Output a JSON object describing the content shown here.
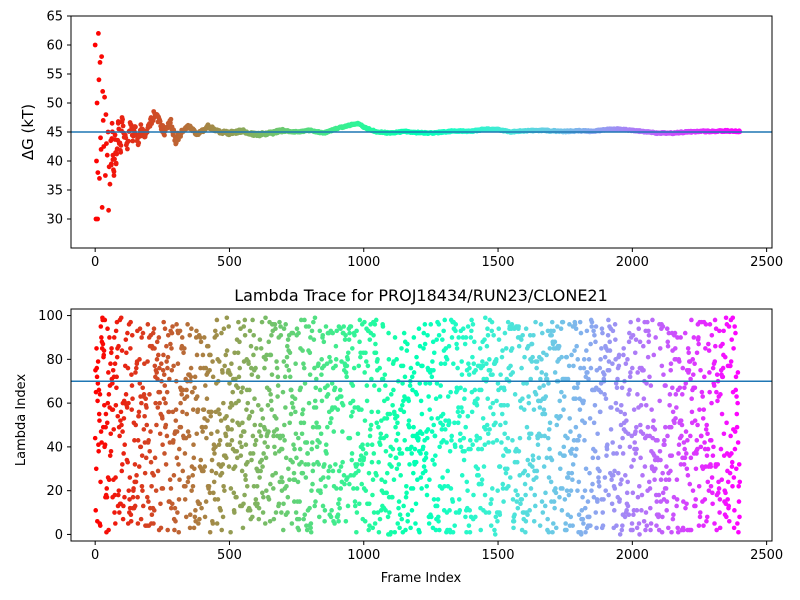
{
  "chart_data": [
    {
      "type": "scatter",
      "title": "",
      "xlabel": "",
      "ylabel": "ΔG (kT)",
      "xlim": [
        -90,
        2520
      ],
      "ylim": [
        25,
        65
      ],
      "xticks": [
        0,
        500,
        1000,
        1500,
        2000,
        2500
      ],
      "yticks": [
        30,
        35,
        40,
        45,
        50,
        55,
        60,
        65
      ],
      "hline": 45.0,
      "hline_color": "#1f77b4",
      "colormap": "rainbow (red → violet along frame index)",
      "grid": false,
      "x_count": 2400,
      "series": [
        {
          "points": [
            [
              0,
              60.0
            ],
            [
              3,
              30.0
            ],
            [
              5,
              40.0
            ],
            [
              7,
              50.0
            ],
            [
              9,
              30.0
            ],
            [
              10,
              38.0
            ],
            [
              12,
              62.0
            ],
            [
              14,
              54.0
            ],
            [
              16,
              37.0
            ],
            [
              18,
              57.0
            ],
            [
              20,
              44.0
            ],
            [
              22,
              42.0
            ],
            [
              24,
              58.0
            ],
            [
              26,
              32.0
            ],
            [
              28,
              52.0
            ],
            [
              30,
              47.0
            ],
            [
              32,
              42.5
            ],
            [
              35,
              51.0
            ],
            [
              38,
              37.5
            ],
            [
              40,
              48.0
            ],
            [
              42,
              43.0
            ],
            [
              45,
              41.0
            ],
            [
              48,
              45.0
            ],
            [
              50,
              31.5
            ],
            [
              52,
              39.0
            ],
            [
              55,
              36.0
            ],
            [
              58,
              43.5
            ],
            [
              60,
              39.5
            ],
            [
              63,
              46.5
            ],
            [
              66,
              41.0
            ],
            [
              70,
              37.5
            ],
            [
              74,
              44.5
            ],
            [
              78,
              39.5
            ],
            [
              82,
              42.0
            ],
            [
              86,
              46.5
            ],
            [
              90,
              43.0
            ],
            [
              95,
              41.5
            ],
            [
              100,
              47.5
            ],
            [
              110,
              44.0
            ],
            [
              120,
              42.5
            ],
            [
              130,
              46.5
            ],
            [
              140,
              44.0
            ],
            [
              150,
              45.5
            ],
            [
              160,
              43.0
            ],
            [
              170,
              46.0
            ],
            [
              180,
              44.5
            ],
            [
              200,
              46.0
            ],
            [
              220,
              48.0
            ],
            [
              240,
              46.5
            ],
            [
              260,
              45.0
            ],
            [
              280,
              47.0
            ],
            [
              300,
              43.5
            ],
            [
              320,
              45.0
            ],
            [
              350,
              46.0
            ],
            [
              380,
              44.5
            ],
            [
              420,
              46.0
            ],
            [
              460,
              45.0
            ],
            [
              500,
              44.8
            ],
            [
              550,
              45.2
            ],
            [
              600,
              44.5
            ],
            [
              650,
              44.8
            ],
            [
              700,
              45.2
            ],
            [
              750,
              45.0
            ],
            [
              800,
              45.3
            ],
            [
              850,
              44.8
            ],
            [
              900,
              45.6
            ],
            [
              950,
              46.2
            ],
            [
              980,
              46.5
            ],
            [
              1000,
              45.8
            ],
            [
              1050,
              45.0
            ],
            [
              1100,
              44.8
            ],
            [
              1150,
              45.1
            ],
            [
              1200,
              44.9
            ],
            [
              1250,
              44.8
            ],
            [
              1300,
              45.0
            ],
            [
              1350,
              45.2
            ],
            [
              1400,
              45.1
            ],
            [
              1450,
              45.5
            ],
            [
              1500,
              45.4
            ],
            [
              1550,
              45.0
            ],
            [
              1600,
              45.2
            ],
            [
              1650,
              45.3
            ],
            [
              1700,
              45.2
            ],
            [
              1750,
              45.1
            ],
            [
              1800,
              45.2
            ],
            [
              1850,
              45.1
            ],
            [
              1900,
              45.4
            ],
            [
              1950,
              45.5
            ],
            [
              2000,
              45.3
            ],
            [
              2050,
              45.0
            ],
            [
              2100,
              44.8
            ],
            [
              2150,
              44.8
            ],
            [
              2200,
              45.0
            ],
            [
              2250,
              45.1
            ],
            [
              2300,
              45.1
            ],
            [
              2350,
              45.2
            ],
            [
              2400,
              45.1
            ]
          ]
        }
      ]
    },
    {
      "type": "scatter",
      "title": "Lambda Trace for PROJ18434/RUN23/CLONE21",
      "xlabel": "Frame Index",
      "ylabel": "Lambda Index",
      "xlim": [
        -90,
        2520
      ],
      "ylim": [
        -3,
        103
      ],
      "xticks": [
        0,
        500,
        1000,
        1500,
        2000,
        2500
      ],
      "yticks": [
        0,
        20,
        40,
        60,
        80,
        100
      ],
      "hline": 70,
      "hline_color": "#1f77b4",
      "colormap": "rainbow (red → violet along frame index)",
      "grid": false,
      "x_count": 2400,
      "x_range": [
        0,
        2400
      ],
      "y_range": [
        0,
        99
      ],
      "n_points": 2400,
      "distribution": "roughly uniform random lambda index per frame"
    }
  ]
}
